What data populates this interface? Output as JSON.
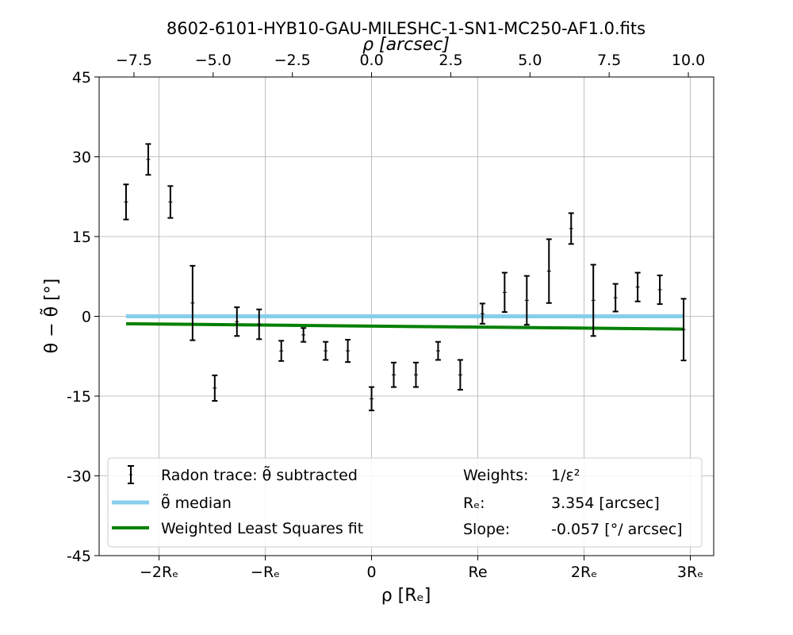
{
  "chart_data": {
    "type": "scatter",
    "title": "8602-6101-HYB10-GAU-MILESHC-1-SN1-MC250-AF1.0.fits",
    "top_axis": {
      "label": "ρ [arcsec]",
      "ticks": [
        -7.5,
        -5.0,
        -2.5,
        0.0,
        2.5,
        5.0,
        7.5,
        10.0
      ],
      "tick_labels": [
        "−7.5",
        "−5.0",
        "−2.5",
        "0.0",
        "2.5",
        "5.0",
        "7.5",
        "10.0"
      ],
      "xlim": [
        -8.6,
        10.8
      ]
    },
    "bottom_axis": {
      "label": "ρ [Rₑ]",
      "ticks": [
        -2,
        -1,
        0,
        1,
        2,
        3
      ],
      "tick_labels": [
        "−2Rₑ",
        "−Rₑ",
        "0",
        "Re",
        "2Rₑ",
        "3Rₑ"
      ]
    },
    "y_axis": {
      "label": "θ − θ̃ [°]",
      "ylim": [
        -45,
        45
      ],
      "ticks": [
        45,
        30,
        15,
        0,
        -15,
        -30,
        -45
      ],
      "tick_labels": [
        "45",
        "30",
        "15",
        "0",
        "-15",
        "-30",
        "-45"
      ]
    },
    "grid": true,
    "legend_position": "lower-center",
    "re_arcsec": 3.354,
    "series": [
      {
        "name": "Radon trace: θ̃ subtracted",
        "kind": "errorbar",
        "color": "#000000",
        "x": [
          -7.75,
          -7.05,
          -6.35,
          -5.65,
          -4.95,
          -4.25,
          -3.55,
          -2.85,
          -2.15,
          -1.45,
          -0.75,
          0.0,
          0.7,
          1.4,
          2.1,
          2.8,
          3.5,
          4.2,
          4.9,
          5.6,
          6.3,
          7.0,
          7.7,
          8.4,
          9.1,
          9.85
        ],
        "y": [
          21.5,
          29.5,
          21.5,
          2.5,
          -13.5,
          -1.0,
          -1.5,
          -6.5,
          -3.5,
          -6.5,
          -6.5,
          -15.5,
          -11.0,
          -11.0,
          -6.5,
          -11.0,
          0.5,
          4.5,
          3.0,
          8.5,
          16.5,
          3.0,
          3.5,
          5.5,
          5.0,
          -2.5
        ],
        "yerr": [
          3.3,
          2.9,
          3.0,
          7.0,
          2.4,
          2.7,
          2.8,
          1.9,
          1.3,
          1.7,
          2.1,
          2.2,
          2.3,
          2.3,
          1.7,
          2.8,
          1.9,
          3.7,
          4.6,
          6.0,
          2.9,
          6.7,
          2.6,
          2.7,
          2.7,
          5.8
        ]
      },
      {
        "name": "θ̃ median",
        "kind": "line",
        "color": "#87ceeb",
        "x": [
          -7.75,
          9.85
        ],
        "y": [
          0.0,
          0.0
        ]
      },
      {
        "name": "Weighted Least Squares fit",
        "kind": "line",
        "color": "#008000",
        "x": [
          -7.75,
          9.85
        ],
        "y": [
          -1.4,
          -2.4
        ]
      }
    ],
    "annotations": {
      "weights_label": "Weights:",
      "weights_value": "1/ε²",
      "re_label": "Rₑ:",
      "re_value": "3.354 [arcsec]",
      "slope_label": "Slope:",
      "slope_value": "-0.057 [°/ arcsec]"
    }
  }
}
